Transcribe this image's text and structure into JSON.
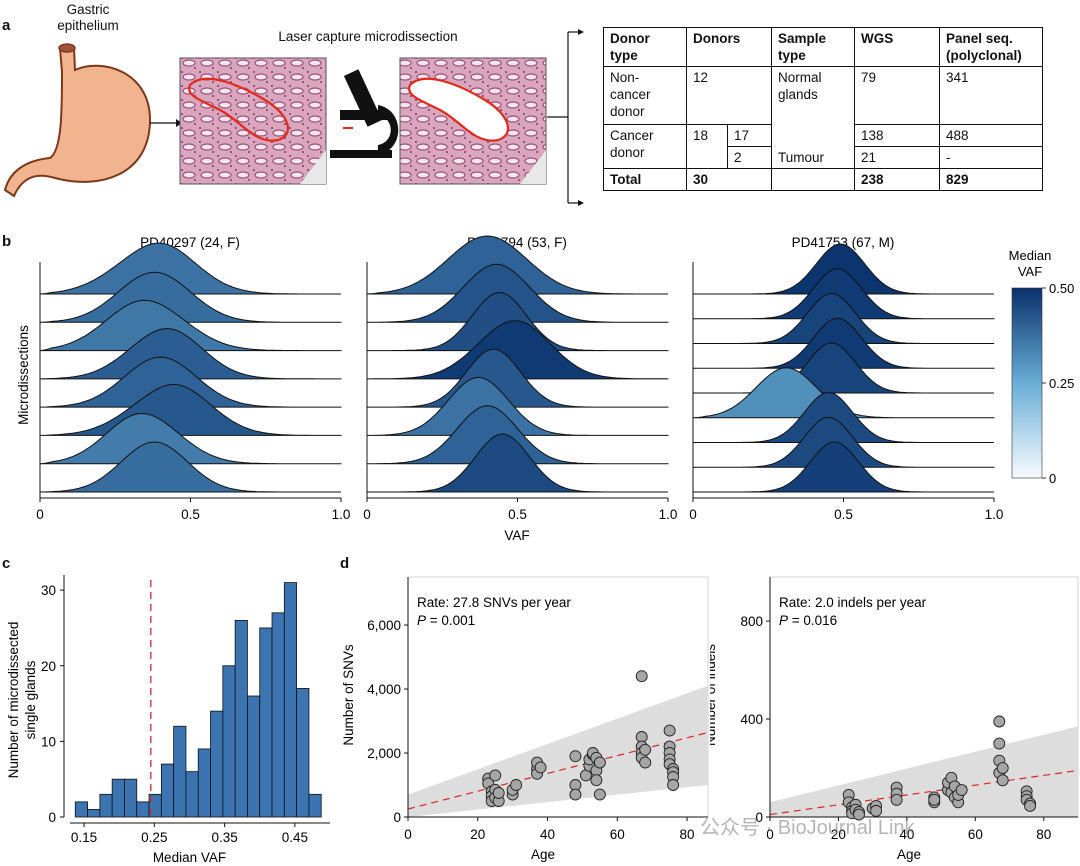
{
  "panels": {
    "a": {
      "letter": "a",
      "epithelium_label_1": "Gastric",
      "epithelium_label_2": "epithelium",
      "lcm_label": "Laser capture microdissection",
      "table": {
        "headers": [
          [
            "Donor",
            "type"
          ],
          [
            "Donors"
          ],
          [
            "Sample",
            "type"
          ],
          [
            "WGS"
          ],
          [
            "Panel seq.",
            "(polyclonal)"
          ]
        ],
        "noncancer": {
          "type": [
            "Non-",
            "cancer",
            "donor"
          ],
          "donors": "12",
          "sample": [
            "Normal",
            "glands"
          ],
          "wgs": "79",
          "panel": "341"
        },
        "cancer": {
          "type": [
            "Cancer",
            "donor"
          ],
          "donors": "18",
          "sub1": "17",
          "sub2": "2",
          "tumour": "Tumour",
          "wgs1": "138",
          "panel1": "488",
          "wgs2": "21",
          "panel2": "-"
        },
        "total": {
          "label": "Total",
          "donors": "30",
          "wgs": "238",
          "panel": "829"
        }
      }
    },
    "b": {
      "letter": "b",
      "titles": [
        "PD40297 (24, F)",
        "PD42794 (53, F)",
        "PD41753 (67, M)"
      ],
      "ylabel": "Microdissections",
      "xlabel": "VAF",
      "xticks": [
        "0",
        "0.5",
        "1.0"
      ],
      "colorbar": {
        "title_1": "Median",
        "title_2": "VAF",
        "ticks": [
          "0.50",
          "0.25",
          "0"
        ]
      }
    },
    "c": {
      "letter": "c"
    },
    "d": {
      "letter": "d"
    }
  },
  "watermark": "公众号 · BioJournal Link",
  "chart_data": [
    {
      "type": "area",
      "panel": "b",
      "title": "PD40297 (24, F)",
      "xlabel": "VAF",
      "ylabel": "Microdissections",
      "xlim": [
        0,
        1.0
      ],
      "series": [
        {
          "median": 0.37,
          "sd": 0.13,
          "skew": 0.2
        },
        {
          "median": 0.38,
          "sd": 0.12,
          "skew": 0.0
        },
        {
          "median": 0.36,
          "sd": 0.13,
          "skew": -0.1
        },
        {
          "median": 0.41,
          "sd": 0.12,
          "skew": 0.1
        },
        {
          "median": 0.4,
          "sd": 0.12,
          "skew": 0.0
        },
        {
          "median": 0.42,
          "sd": 0.13,
          "skew": 0.2
        },
        {
          "median": 0.35,
          "sd": 0.12,
          "skew": -0.1
        },
        {
          "median": 0.38,
          "sd": 0.11,
          "skew": 0.0
        }
      ],
      "colorbar": {
        "label": "Median VAF",
        "range": [
          0,
          0.5
        ]
      }
    },
    {
      "type": "area",
      "panel": "b",
      "title": "PD42794 (53, F)",
      "xlabel": "VAF",
      "ylabel": "Microdissections",
      "xlim": [
        0,
        1.0
      ],
      "series": [
        {
          "median": 0.4,
          "sd": 0.13,
          "skew": 0.0
        },
        {
          "median": 0.43,
          "sd": 0.11,
          "skew": 0.0
        },
        {
          "median": 0.44,
          "sd": 0.09,
          "skew": 0.0
        },
        {
          "median": 0.48,
          "sd": 0.12,
          "skew": 0.1
        },
        {
          "median": 0.42,
          "sd": 0.09,
          "skew": 0.0
        },
        {
          "median": 0.37,
          "sd": 0.1,
          "skew": 0.0
        },
        {
          "median": 0.4,
          "sd": 0.1,
          "skew": 0.0
        },
        {
          "median": 0.45,
          "sd": 0.09,
          "skew": 0.0
        }
      ],
      "colorbar": {
        "label": "Median VAF",
        "range": [
          0,
          0.5
        ]
      }
    },
    {
      "type": "area",
      "panel": "b",
      "title": "PD41753 (67, M)",
      "xlabel": "VAF",
      "ylabel": "Microdissections",
      "xlim": [
        0,
        1.0
      ],
      "series": [
        {
          "median": 0.49,
          "sd": 0.08,
          "skew": 0.0
        },
        {
          "median": 0.48,
          "sd": 0.08,
          "skew": 0.0
        },
        {
          "median": 0.46,
          "sd": 0.08,
          "skew": 0.0
        },
        {
          "median": 0.48,
          "sd": 0.08,
          "skew": 0.0
        },
        {
          "median": 0.46,
          "sd": 0.08,
          "skew": 0.0
        },
        {
          "median": 0.31,
          "sd": 0.1,
          "skew": 0.0
        },
        {
          "median": 0.45,
          "sd": 0.08,
          "skew": 0.0
        },
        {
          "median": 0.45,
          "sd": 0.08,
          "skew": 0.0
        },
        {
          "median": 0.47,
          "sd": 0.08,
          "skew": 0.0
        }
      ],
      "colorbar": {
        "label": "Median VAF",
        "range": [
          0,
          0.5
        ]
      }
    },
    {
      "type": "bar",
      "panel": "c",
      "xlabel": "Median VAF",
      "ylabel_1": "Number of microdissected",
      "ylabel_2": "single glands",
      "bin_width": 0.0175,
      "bin_start": 0.1375,
      "values": [
        2,
        1,
        3,
        5,
        5,
        2,
        3,
        7,
        12,
        6,
        9,
        14,
        20,
        26,
        16,
        25,
        27,
        31,
        17,
        3
      ],
      "xticks": [
        "0.15",
        "0.25",
        "0.35",
        "0.45"
      ],
      "xtick_values": [
        0.15,
        0.25,
        0.35,
        0.45
      ],
      "yticks": [
        0,
        10,
        20,
        30
      ],
      "ylim": [
        0,
        32
      ],
      "xlim": [
        0.13,
        0.5
      ],
      "threshold_line": 0.245,
      "color": "#3b74b0"
    },
    {
      "type": "scatter",
      "panel": "d",
      "annotation_rate": "Rate: 27.8 SNVs per year",
      "annotation_p_label": "P",
      "annotation_p_value": " = 0.001",
      "xlabel": "Age",
      "ylabel": "Number of SNVs",
      "xlim": [
        0,
        86
      ],
      "ylim": [
        0,
        7500
      ],
      "xticks": [
        0,
        20,
        40,
        60,
        80
      ],
      "yticks": [
        "0",
        "2,000",
        "4,000",
        "6,000"
      ],
      "ytick_values": [
        0,
        2000,
        4000,
        6000
      ],
      "fit": {
        "intercept": 250,
        "slope": 27.8
      },
      "band": {
        "lower_start": 0,
        "lower_end": 1000,
        "upper_start": 700,
        "upper_end": 4100
      },
      "points": [
        [
          23,
          1200
        ],
        [
          23,
          1050
        ],
        [
          24,
          800
        ],
        [
          24,
          650
        ],
        [
          24,
          500
        ],
        [
          25,
          1300
        ],
        [
          25,
          850
        ],
        [
          25,
          600
        ],
        [
          26,
          500
        ],
        [
          26,
          750
        ],
        [
          30,
          700
        ],
        [
          30,
          850
        ],
        [
          31,
          1000
        ],
        [
          37,
          1500
        ],
        [
          37,
          1700
        ],
        [
          37,
          1350
        ],
        [
          38,
          1550
        ],
        [
          48,
          1900
        ],
        [
          48,
          1000
        ],
        [
          48,
          700
        ],
        [
          51,
          1300
        ],
        [
          52,
          1600
        ],
        [
          52,
          1800
        ],
        [
          53,
          1950
        ],
        [
          53,
          2000
        ],
        [
          54,
          1450
        ],
        [
          54,
          1150
        ],
        [
          54,
          1850
        ],
        [
          55,
          700
        ],
        [
          55,
          1700
        ],
        [
          67,
          4400
        ],
        [
          67,
          2500
        ],
        [
          67,
          2200
        ],
        [
          67,
          2000
        ],
        [
          67,
          1850
        ],
        [
          68,
          1700
        ],
        [
          68,
          2100
        ],
        [
          75,
          2700
        ],
        [
          75,
          2200
        ],
        [
          75,
          2000
        ],
        [
          75,
          1800
        ],
        [
          75,
          1650
        ],
        [
          76,
          1500
        ],
        [
          76,
          1400
        ],
        [
          76,
          1250
        ],
        [
          76,
          1000
        ]
      ]
    },
    {
      "type": "scatter",
      "panel": "d",
      "annotation_rate": "Rate: 2.0 indels per year",
      "annotation_p_label": "P",
      "annotation_p_value": " = 0.016",
      "xlabel": "Age",
      "ylabel": "Number of indels",
      "xlim": [
        0,
        90
      ],
      "ylim": [
        0,
        980
      ],
      "xticks": [
        0,
        20,
        40,
        60,
        80
      ],
      "yticks": [
        "0",
        "400",
        "800"
      ],
      "ytick_values": [
        0,
        400,
        800
      ],
      "fit": {
        "intercept": 10,
        "slope": 2.0
      },
      "band": {
        "lower_start": 0,
        "lower_end": 0,
        "upper_start": 60,
        "upper_end": 370
      },
      "points": [
        [
          23,
          90
        ],
        [
          23,
          60
        ],
        [
          24,
          40
        ],
        [
          24,
          25
        ],
        [
          24,
          15
        ],
        [
          25,
          50
        ],
        [
          25,
          30
        ],
        [
          26,
          20
        ],
        [
          26,
          10
        ],
        [
          30,
          35
        ],
        [
          31,
          45
        ],
        [
          31,
          25
        ],
        [
          37,
          120
        ],
        [
          37,
          95
        ],
        [
          37,
          70
        ],
        [
          48,
          80
        ],
        [
          48,
          60
        ],
        [
          48,
          70
        ],
        [
          52,
          110
        ],
        [
          52,
          140
        ],
        [
          53,
          160
        ],
        [
          53,
          100
        ],
        [
          54,
          80
        ],
        [
          54,
          125
        ],
        [
          55,
          60
        ],
        [
          55,
          90
        ],
        [
          56,
          110
        ],
        [
          67,
          390
        ],
        [
          67,
          300
        ],
        [
          67,
          230
        ],
        [
          67,
          180
        ],
        [
          68,
          150
        ],
        [
          68,
          200
        ],
        [
          75,
          105
        ],
        [
          75,
          85
        ],
        [
          75,
          70
        ],
        [
          76,
          55
        ],
        [
          76,
          45
        ]
      ]
    }
  ]
}
